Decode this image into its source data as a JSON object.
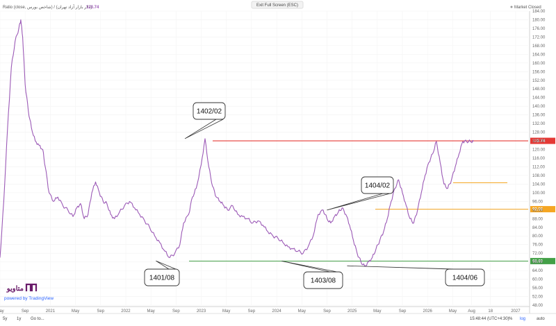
{
  "header": {
    "series_label": "Ratio (close, شاخص بورس) / (دلار بازار آزاد تهران)",
    "last_value": "123.74",
    "center_label": "Exit Full Screen (ESC)",
    "market_status": "Market Closed"
  },
  "branding": {
    "logo_text": "متاویو",
    "powered_by": "powered by TradingView"
  },
  "bottom_bar": {
    "range_buttons": [
      "5y",
      "1y",
      "Go to..."
    ],
    "clock": "15:48:44 (UTC+4:30)",
    "options": [
      "%",
      "log",
      "auto"
    ]
  },
  "colors": {
    "line": "#9b59b6",
    "resistance": "#e53935",
    "support_orange": "#f5a623",
    "support_green": "#43a047",
    "last_badge": "#e53935"
  },
  "chart_data": {
    "type": "line",
    "ylim": [
      48,
      184
    ],
    "y_ticks": [
      "184.00",
      "180.00",
      "176.00",
      "172.00",
      "168.00",
      "164.00",
      "160.00",
      "156.00",
      "152.00",
      "148.00",
      "144.00",
      "140.00",
      "136.00",
      "132.00",
      "128.00",
      "124.00",
      "120.00",
      "116.00",
      "112.00",
      "108.00",
      "104.00",
      "100.00",
      "96.00",
      "92.00",
      "88.00",
      "84.00",
      "80.00",
      "76.00",
      "72.00",
      "68.00",
      "64.00",
      "60.00",
      "56.00",
      "52.00",
      "48.00"
    ],
    "x_ticks": [
      "May",
      "Sep",
      "2021",
      "May",
      "Sep",
      "2022",
      "May",
      "Sep",
      "2023",
      "May",
      "Sep",
      "2024",
      "May",
      "Sep",
      "2025",
      "May",
      "Sep",
      "2026",
      "May",
      "Aug",
      "18",
      "2027"
    ],
    "x_tick_index": [
      0,
      4,
      8,
      12,
      16,
      20,
      24,
      28,
      32,
      36,
      40,
      44,
      48,
      52,
      56,
      60,
      64,
      68,
      72,
      75,
      78,
      82
    ],
    "series": [
      {
        "x_index": [
          0,
          0.6,
          1.2,
          1.8,
          2.4,
          3.0,
          3.3,
          3.6,
          4.0,
          4.5,
          5.0,
          5.6,
          6.2,
          6.8,
          7.2,
          7.8,
          8.5,
          9.2,
          10.0,
          10.8,
          11.6,
          12.2,
          12.8,
          13.4,
          14.0,
          14.6,
          15.2,
          15.8,
          16.4,
          17.0,
          17.6,
          18.2,
          19.0,
          19.8,
          20.6,
          21.4,
          22.2,
          23.0,
          23.8,
          24.6,
          25.4,
          26.2,
          27.0,
          27.8,
          28.6,
          29.2,
          30.0,
          30.6,
          31.2,
          32.0,
          32.6,
          33.2,
          33.8,
          34.4,
          35.0,
          35.6,
          36.2,
          37.0,
          37.8,
          38.6,
          39.4,
          40.2,
          41.0,
          41.8,
          42.6,
          43.4,
          44.2,
          45.0,
          45.8,
          46.6,
          47.4,
          48.2,
          49.0,
          49.8,
          50.6,
          51.4,
          52.0,
          52.6,
          53.2,
          53.8,
          54.4,
          55.0,
          55.6,
          56.2,
          56.8,
          57.4,
          58.0,
          58.6,
          59.2,
          59.8,
          60.4,
          61.0,
          61.6,
          62.2,
          62.8,
          63.4,
          64.0,
          64.6,
          65.2,
          65.8,
          66.4,
          67.0,
          67.6,
          68.2,
          68.8,
          69.4,
          70.0,
          70.6,
          71.2,
          71.8,
          72.4,
          73.0,
          73.6,
          74.2,
          74.8,
          75.3
        ],
        "values": [
          70,
          96,
          130,
          158,
          170,
          176,
          180,
          172,
          150,
          138,
          130,
          124,
          122,
          120,
          112,
          100,
          96,
          98,
          94,
          92,
          89,
          93,
          95,
          88,
          90,
          100,
          105,
          100,
          96,
          95,
          90,
          88,
          91,
          94,
          96,
          93,
          90,
          87,
          84,
          80,
          77,
          73,
          70,
          72,
          76,
          86,
          90,
          98,
          102,
          113,
          125,
          112,
          103,
          98,
          96,
          94,
          92,
          94,
          90,
          89,
          88,
          86,
          87,
          85,
          82,
          80,
          79,
          77,
          75,
          74,
          73,
          72,
          75,
          80,
          90,
          92,
          88,
          86,
          89,
          91,
          93,
          90,
          85,
          78,
          72,
          68,
          66,
          68,
          70,
          74,
          78,
          82,
          88,
          96,
          102,
          106,
          100,
          94,
          88,
          86,
          92,
          100,
          108,
          114,
          118,
          123.74,
          114,
          104,
          102,
          106,
          112,
          118,
          123.74,
          123.74,
          123.74,
          123.74
        ]
      }
    ],
    "levels": [
      {
        "value": 124.0,
        "label": "123.74",
        "color": "#e53935"
      },
      {
        "value": 104.6,
        "label": "",
        "color": "#f5a623"
      },
      {
        "value": 92.4,
        "label": "92.56",
        "color": "#f5a623"
      },
      {
        "value": 68.4,
        "label": "68.60",
        "color": "#43a047"
      }
    ],
    "annotations": [
      {
        "label": "1402/02",
        "point_index": 29.4,
        "point_value": 125
      },
      {
        "label": "1404/02",
        "point_index": 52.0,
        "point_value": 92
      },
      {
        "label": "1401/08",
        "point_index": 24.8,
        "point_value": 68.5
      },
      {
        "label": "1403/08",
        "point_index": 44.8,
        "point_value": 68.4
      },
      {
        "label": "1404/06",
        "point_index": 55.2,
        "point_value": 66.2
      }
    ]
  }
}
